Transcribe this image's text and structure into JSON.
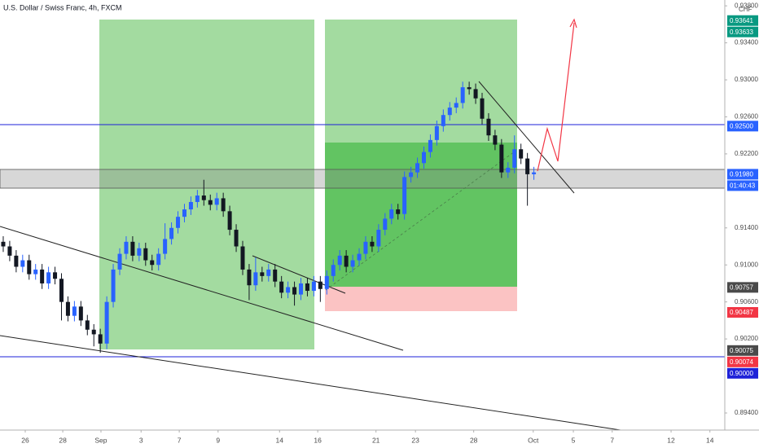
{
  "chart_data": {
    "type": "candlestick",
    "title": "U.S. Dollar / Swiss Franc, 4h, FXCM",
    "currency": "CHF",
    "up_color": "#2962ff",
    "down_color": "#131722",
    "xlim": [
      0,
      112
    ],
    "xticks": [
      {
        "value": 3.9,
        "label": "26"
      },
      {
        "value": 9.7,
        "label": "28"
      },
      {
        "value": 15.6,
        "label": "Sep"
      },
      {
        "value": 21.8,
        "label": "3"
      },
      {
        "value": 27.7,
        "label": "7"
      },
      {
        "value": 33.7,
        "label": "9"
      },
      {
        "value": 43.2,
        "label": "14"
      },
      {
        "value": 49.1,
        "label": "16"
      },
      {
        "value": 58.1,
        "label": "21"
      },
      {
        "value": 64.2,
        "label": "23"
      },
      {
        "value": 73.2,
        "label": "28"
      },
      {
        "value": 82.4,
        "label": "Oct"
      },
      {
        "value": 88.6,
        "label": "5"
      },
      {
        "value": 94.6,
        "label": "7"
      },
      {
        "value": 103.7,
        "label": "12"
      },
      {
        "value": 109.7,
        "label": "14"
      }
    ],
    "ylim": [
      0.89215,
      0.93863
    ],
    "yticks": [
      {
        "value": 0.938,
        "label": "0.93800"
      },
      {
        "value": 0.934,
        "label": "0.93400"
      },
      {
        "value": 0.93,
        "label": "0.93000"
      },
      {
        "value": 0.926,
        "label": "0.92600"
      },
      {
        "value": 0.922,
        "label": "0.92200"
      },
      {
        "value": 0.914,
        "label": "0.91400"
      },
      {
        "value": 0.91,
        "label": "0.91000"
      },
      {
        "value": 0.906,
        "label": "0.90600"
      },
      {
        "value": 0.902,
        "label": "0.90200"
      },
      {
        "value": 0.894,
        "label": "0.89400"
      }
    ],
    "open": [
      0.9125,
      0.912,
      0.911,
      0.9098,
      0.9105,
      0.909,
      0.9095,
      0.908,
      0.9092,
      0.9085,
      0.906,
      0.9045,
      0.9055,
      0.904,
      0.903,
      0.9025,
      0.9015,
      0.906,
      0.9095,
      0.9112,
      0.9125,
      0.911,
      0.9118,
      0.9105,
      0.91,
      0.9112,
      0.9128,
      0.914,
      0.9152,
      0.916,
      0.9168,
      0.9175,
      0.917,
      0.9165,
      0.9172,
      0.9158,
      0.9138,
      0.912,
      0.9095,
      0.9078,
      0.9092,
      0.9088,
      0.9095,
      0.9082,
      0.907,
      0.9076,
      0.9068,
      0.908,
      0.9072,
      0.9082,
      0.9074,
      0.9088,
      0.91,
      0.911,
      0.9098,
      0.9105,
      0.9112,
      0.9125,
      0.912,
      0.9138,
      0.915,
      0.916,
      0.9155,
      0.9195,
      0.92,
      0.921,
      0.9222,
      0.9235,
      0.925,
      0.9262,
      0.927,
      0.9275,
      0.9292,
      0.929,
      0.928,
      0.9258,
      0.924,
      0.923,
      0.92,
      0.9205,
      0.9225,
      0.9215,
      0.9198
    ],
    "high": [
      0.9131,
      0.9126,
      0.9116,
      0.9111,
      0.9111,
      0.9101,
      0.9101,
      0.9098,
      0.9098,
      0.9091,
      0.9066,
      0.9061,
      0.9061,
      0.9046,
      0.9036,
      0.9031,
      0.9066,
      0.9101,
      0.9118,
      0.9131,
      0.9131,
      0.9124,
      0.9124,
      0.9111,
      0.9118,
      0.9145,
      0.9146,
      0.9158,
      0.9166,
      0.9174,
      0.9181,
      0.9192,
      0.9176,
      0.9178,
      0.9178,
      0.9164,
      0.9144,
      0.9126,
      0.9101,
      0.9108,
      0.9098,
      0.9101,
      0.9101,
      0.9088,
      0.9082,
      0.9082,
      0.9086,
      0.9086,
      0.9088,
      0.9088,
      0.9094,
      0.9106,
      0.9116,
      0.9116,
      0.9111,
      0.9118,
      0.9131,
      0.9131,
      0.9144,
      0.9156,
      0.9166,
      0.9166,
      0.9201,
      0.9206,
      0.9216,
      0.9228,
      0.9241,
      0.9256,
      0.9268,
      0.9276,
      0.9281,
      0.9298,
      0.9298,
      0.9296,
      0.9286,
      0.9264,
      0.9246,
      0.9236,
      0.9211,
      0.924,
      0.9231,
      0.9221,
      0.9206
    ],
    "low": [
      0.9114,
      0.9104,
      0.9092,
      0.9092,
      0.9084,
      0.9084,
      0.9074,
      0.9074,
      0.9079,
      0.904,
      0.9039,
      0.9039,
      0.9034,
      0.9024,
      0.9012,
      0.9005,
      0.9009,
      0.9054,
      0.9089,
      0.9106,
      0.9104,
      0.9104,
      0.9099,
      0.9094,
      0.9094,
      0.9106,
      0.9122,
      0.9134,
      0.9146,
      0.9154,
      0.9162,
      0.9164,
      0.9159,
      0.9159,
      0.9152,
      0.9132,
      0.9114,
      0.9089,
      0.9062,
      0.9072,
      0.9082,
      0.9082,
      0.9076,
      0.9064,
      0.9064,
      0.9056,
      0.9062,
      0.9066,
      0.9066,
      0.906,
      0.9068,
      0.9082,
      0.9094,
      0.9092,
      0.9092,
      0.9099,
      0.9106,
      0.9114,
      0.9114,
      0.9132,
      0.9144,
      0.9149,
      0.9149,
      0.9189,
      0.9194,
      0.9204,
      0.9216,
      0.9229,
      0.9244,
      0.9256,
      0.9264,
      0.9269,
      0.9284,
      0.9274,
      0.9252,
      0.9234,
      0.9224,
      0.9194,
      0.9194,
      0.9199,
      0.9209,
      0.9164,
      0.9192
    ],
    "close": [
      0.912,
      0.911,
      0.9098,
      0.9105,
      0.909,
      0.9095,
      0.908,
      0.9092,
      0.9085,
      0.906,
      0.9045,
      0.9055,
      0.904,
      0.903,
      0.9025,
      0.9015,
      0.906,
      0.9095,
      0.9112,
      0.9125,
      0.911,
      0.9118,
      0.9105,
      0.91,
      0.9112,
      0.9128,
      0.914,
      0.9152,
      0.916,
      0.9168,
      0.9175,
      0.917,
      0.9165,
      0.9172,
      0.9158,
      0.9138,
      0.912,
      0.9095,
      0.9078,
      0.9092,
      0.9088,
      0.9095,
      0.9082,
      0.907,
      0.9076,
      0.9068,
      0.908,
      0.9072,
      0.9082,
      0.9074,
      0.9088,
      0.91,
      0.911,
      0.9098,
      0.9105,
      0.9112,
      0.9125,
      0.912,
      0.9138,
      0.915,
      0.916,
      0.9155,
      0.9195,
      0.92,
      0.921,
      0.9222,
      0.9235,
      0.925,
      0.9262,
      0.927,
      0.9275,
      0.9292,
      0.929,
      0.928,
      0.9258,
      0.924,
      0.923,
      0.92,
      0.9205,
      0.9225,
      0.9215,
      0.9198,
      0.92
    ],
    "price_labels": [
      {
        "value": 0.93641,
        "label": "0.93641",
        "color": "#089981"
      },
      {
        "value": 0.93633,
        "label": "0.93633",
        "color": "#089981"
      },
      {
        "value": 0.925,
        "label": "0.92500",
        "color": "#2962ff"
      },
      {
        "value": 0.9198,
        "label": "0.91980",
        "color": "#2962ff"
      },
      {
        "value": 0.90757,
        "label": "0.90757",
        "color": "#4a4a4a"
      },
      {
        "value": 0.90487,
        "label": "0.90487",
        "color": "#f23645"
      },
      {
        "value": 0.90075,
        "label": "0.90075",
        "color": "#4a4a4a"
      },
      {
        "value": 0.90074,
        "label": "0.90074",
        "color": "#f23645"
      },
      {
        "value": 0.9,
        "label": "0.90000",
        "color": "#1e22d8"
      }
    ],
    "countdown": "01:40:43"
  }
}
